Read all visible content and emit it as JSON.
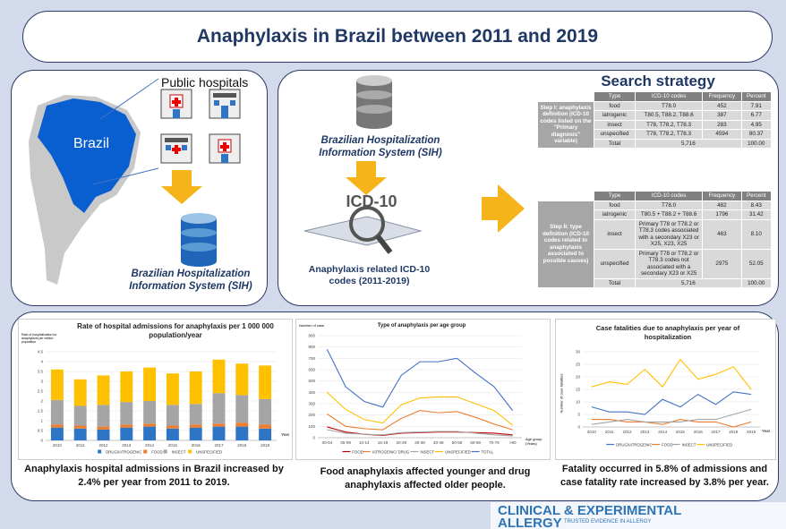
{
  "title": "Anaphylaxis in Brazil between 2011 and 2019",
  "left_panel": {
    "hospitals": "Public hospitals",
    "country": "Brazil",
    "database": "Brazilian Hospitalization Information System (SIH)"
  },
  "middle_panel": {
    "database": "Brazilian Hospitalization Information System (SIH)",
    "icon_text": "ICD-10",
    "caption": "Anaphylaxis related ICD-10 codes (2011-2019)"
  },
  "search_strategy": {
    "title": "Search strategy",
    "tables": [
      {
        "step": "Step I: anaphylaxis definition (ICD-10 codes listed on the \"Primary diagnosis\" variable)",
        "header": [
          "Type",
          "ICD-10 codes",
          "Frequency",
          "Percent"
        ],
        "rows": [
          [
            "food",
            "T78.0",
            "452",
            "7.91"
          ],
          [
            "iatrogenic",
            "T80.5, T88.2, T88.6",
            "387",
            "6.77"
          ],
          [
            "insect",
            "T78, T78.2, T78.3",
            "283",
            "4.95"
          ],
          [
            "unspecified",
            "T78, T78.2, T78.3",
            "4594",
            "80.37"
          ]
        ],
        "total": [
          "Total",
          "5,716",
          "100.00"
        ]
      },
      {
        "step": "Step II: type definition (ICD-10 codes related to anaphylaxis associated to possible causes)",
        "header": [
          "Type",
          "ICD-10 codes",
          "Frequency",
          "Percent"
        ],
        "rows": [
          [
            "food",
            "T78.0",
            "482",
            "8.43"
          ],
          [
            "iatrogenic",
            "T80.5 + T88.2 + T88.6",
            "1796",
            "31.42"
          ],
          [
            "insect",
            "Primary T78 or T78.2 or T78.3 codes associated with a secondary X23 or X25, X23, X25",
            "463",
            "8.10"
          ],
          [
            "unspecified",
            "Primary T78 or T78.2 or T78.3 codes not associated with a secondary X23 or X25",
            "2975",
            "52.05"
          ]
        ],
        "total": [
          "Total",
          "5,716",
          "100.00"
        ]
      }
    ]
  },
  "chart_data": [
    {
      "type": "bar",
      "stacked": true,
      "title": "Rate of hospital admissions for anaphylaxis per 1 000 000 population/year",
      "y_label": "Rate of hospitalization for anaphylaxis per million population",
      "x_label": "Year",
      "categories": [
        "2010",
        "2011",
        "2012",
        "2013",
        "2014",
        "2015",
        "2016",
        "2017",
        "2018",
        "2019"
      ],
      "series": [
        {
          "name": "DRUG/IATROGENIC",
          "color": "#2e75c6",
          "values": [
            0.65,
            0.6,
            0.55,
            0.65,
            0.7,
            0.6,
            0.65,
            0.7,
            0.7,
            0.6
          ]
        },
        {
          "name": "FOOD",
          "color": "#ed7d31",
          "values": [
            0.15,
            0.15,
            0.15,
            0.15,
            0.15,
            0.15,
            0.15,
            0.15,
            0.2,
            0.2
          ]
        },
        {
          "name": "INSECT",
          "color": "#a5a5a5",
          "values": [
            1.25,
            1.0,
            1.1,
            1.15,
            1.15,
            1.05,
            1.05,
            1.55,
            1.4,
            1.3
          ]
        },
        {
          "name": "UNSPECIFIED",
          "color": "#ffc000",
          "values": [
            1.55,
            1.35,
            1.5,
            1.55,
            1.7,
            1.6,
            1.65,
            1.7,
            1.6,
            1.7
          ]
        }
      ],
      "ylim": [
        0,
        4.5
      ],
      "yticks": [
        0,
        0.5,
        1,
        1.5,
        2,
        2.5,
        3,
        3.5,
        4,
        4.5
      ],
      "grid": true
    },
    {
      "type": "line",
      "title": "Type of anaphylaxis per age group",
      "y_label": "Number of case",
      "x_label": "Age group (Years)",
      "categories": [
        "00-04",
        "05-09",
        "10-14",
        "15-19",
        "20-29",
        "30-39",
        "40-49",
        "50-59",
        "60-69",
        "70-79",
        ">80"
      ],
      "series": [
        {
          "name": "FOOD",
          "color": "#c00000",
          "values": [
            95,
            50,
            30,
            20,
            40,
            45,
            50,
            50,
            45,
            40,
            25
          ]
        },
        {
          "name": "IATROGENIC/ DRUG",
          "color": "#ed7d31",
          "values": [
            210,
            100,
            80,
            70,
            170,
            240,
            220,
            230,
            180,
            120,
            70
          ]
        },
        {
          "name": "INSECT",
          "color": "#a5a5a5",
          "values": [
            70,
            40,
            30,
            25,
            45,
            50,
            55,
            55,
            40,
            25,
            15
          ]
        },
        {
          "name": "UNSPECIFIED",
          "color": "#ffc000",
          "values": [
            400,
            250,
            160,
            130,
            290,
            350,
            360,
            360,
            300,
            240,
            110
          ]
        },
        {
          "name": "TOTAL",
          "color": "#4472c4",
          "values": [
            780,
            450,
            320,
            270,
            550,
            670,
            670,
            700,
            570,
            450,
            240
          ]
        }
      ],
      "ylim": [
        0,
        900
      ],
      "yticks": [
        0,
        100,
        200,
        300,
        400,
        500,
        600,
        700,
        800,
        900
      ],
      "grid": true
    },
    {
      "type": "line",
      "title": "Case fatalities due to anaphylaxis per year of hospitalization",
      "y_label": "Number of case fatalities",
      "x_label": "Year",
      "categories": [
        "2010",
        "2011",
        "2012",
        "2013",
        "2014",
        "2015",
        "2016",
        "2017",
        "2018",
        "2019"
      ],
      "series": [
        {
          "name": "DRUG/IATROGENIC",
          "color": "#4472c4",
          "values": [
            8,
            6,
            6,
            5,
            11,
            8,
            13,
            9,
            14,
            13
          ]
        },
        {
          "name": "FOOD",
          "color": "#ed7d31",
          "values": [
            3,
            3,
            2,
            2,
            1,
            3,
            2,
            2,
            0,
            2
          ]
        },
        {
          "name": "INSECT",
          "color": "#a5a5a5",
          "values": [
            1,
            2,
            3,
            2,
            2,
            2,
            3,
            3,
            5,
            7
          ]
        },
        {
          "name": "UNSPECIFIED",
          "color": "#ffc000",
          "values": [
            16,
            18,
            17,
            23,
            16,
            27,
            19,
            21,
            24,
            15
          ]
        }
      ],
      "ylim": [
        0,
        30
      ],
      "yticks": [
        0,
        5,
        10,
        15,
        20,
        25,
        30
      ],
      "grid": true
    }
  ],
  "captions": [
    "Anaphylaxis hospital admissions in Brazil increased by 2.4% per year from 2011 to 2019.",
    "Food anaphylaxis affected younger and drug anaphylaxis affected older people.",
    "Fatality occurred in 5.8% of admissions and case fatality rate increased by 3.8% per year."
  ],
  "logo": {
    "line1": "CLINICAL & EXPERIMENTAL",
    "line2": "ALLERGY",
    "tagline": "TRUSTED EVIDENCE IN ALLERGY"
  }
}
